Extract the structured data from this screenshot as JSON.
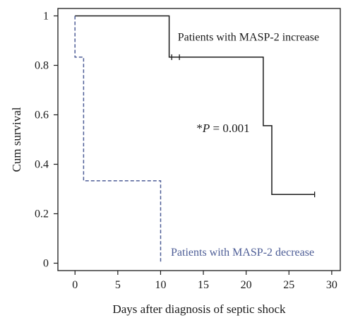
{
  "chart_data": {
    "type": "line",
    "step": true,
    "xlabel": "Days after diagnosis of septic shock",
    "ylabel": "Cum survival",
    "xlim": [
      -2,
      31
    ],
    "ylim": [
      -0.03,
      1.03
    ],
    "xticks": [
      0,
      5,
      10,
      15,
      20,
      25,
      30
    ],
    "yticks": [
      0,
      0.2,
      0.4,
      0.6,
      0.8,
      1
    ],
    "ytick_labels": [
      "0",
      "0.2",
      "0.4",
      "0.6",
      "0.8",
      "1"
    ],
    "grid": false,
    "series": [
      {
        "name": "Patients with MASP-2 increase",
        "color": "#1a1a1a",
        "dash": false,
        "points": [
          [
            0,
            1
          ],
          [
            11,
            1
          ],
          [
            11,
            0.833
          ],
          [
            22,
            0.833
          ],
          [
            22,
            0.556
          ],
          [
            23,
            0.556
          ],
          [
            23,
            0.278
          ],
          [
            28,
            0.278
          ]
        ],
        "censored": [
          [
            11.3,
            0.833
          ],
          [
            12.2,
            0.833
          ],
          [
            28,
            0.278
          ]
        ]
      },
      {
        "name": "Patients with MASP-2 decrease",
        "color": "#4d5d96",
        "dash": true,
        "points": [
          [
            0,
            1
          ],
          [
            0,
            0.833
          ],
          [
            1,
            0.833
          ],
          [
            1,
            0.333
          ],
          [
            10,
            0.333
          ],
          [
            10,
            0
          ]
        ],
        "censored": []
      }
    ],
    "annotations": [
      {
        "text": "Patients with MASP-2 increase",
        "series": 0,
        "x": 12,
        "y": 0.9
      },
      {
        "text": "Patients with MASP-2 decrease",
        "series": 1,
        "x": 11.2,
        "y": 0.03
      }
    ],
    "p_value": {
      "prefix": "*",
      "symbol": "P",
      "rest": " = 0.001",
      "x": 14.2,
      "y": 0.53
    }
  }
}
